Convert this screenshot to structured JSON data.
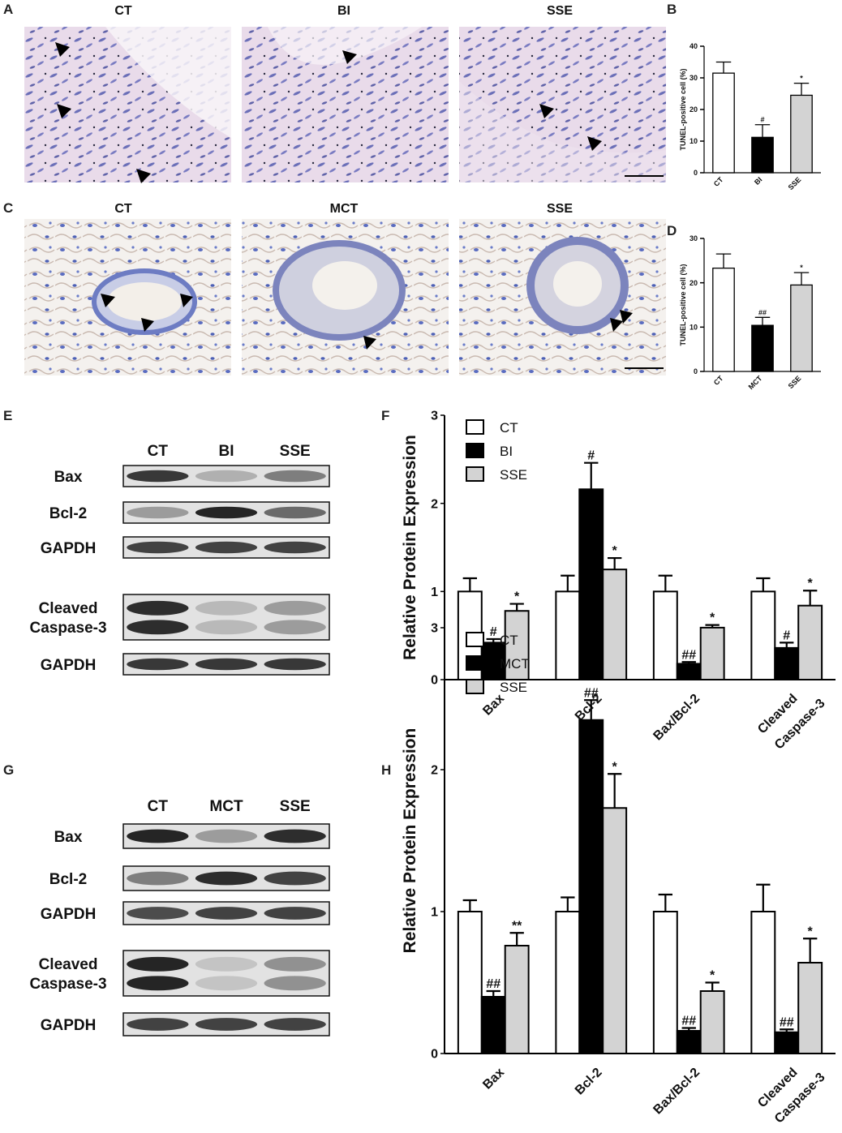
{
  "panel_letters": [
    "A",
    "B",
    "C",
    "D",
    "E",
    "F",
    "G",
    "H"
  ],
  "colors": {
    "CT": "#ffffff",
    "treat": "#000000",
    "SSE": "#d3d3d3"
  },
  "micrographs": [
    {
      "row": "A",
      "labels": [
        "CT",
        "BI",
        "SSE"
      ],
      "style": "pink"
    },
    {
      "row": "C",
      "labels": [
        "CT",
        "MCT",
        "SSE"
      ],
      "style": "blue"
    }
  ],
  "blots": [
    {
      "panel": "E",
      "lanes": [
        "CT",
        "BI",
        "SSE"
      ],
      "rows": [
        {
          "label": "Bax"
        },
        {
          "label": "Bcl-2"
        },
        {
          "label": "GAPDH"
        },
        {
          "label": "Cleaved\nCaspase-3"
        },
        {
          "label": "GAPDH"
        }
      ]
    },
    {
      "panel": "G",
      "lanes": [
        "CT",
        "MCT",
        "SSE"
      ],
      "rows": [
        {
          "label": "Bax"
        },
        {
          "label": "Bcl-2"
        },
        {
          "label": "GAPDH"
        },
        {
          "label": "Cleaved\nCaspase-3"
        },
        {
          "label": "GAPDH"
        }
      ]
    }
  ],
  "chart_data": [
    {
      "panel": "B",
      "type": "bar",
      "categories": [
        "CT",
        "BI",
        "SSE"
      ],
      "values": [
        31.5,
        11.2,
        24.5
      ],
      "errors": [
        3.5,
        4,
        3.8
      ],
      "annotations": [
        "",
        "#",
        "*"
      ],
      "ylabel": "TUNEL-positive cell (%)",
      "ylim": [
        0,
        40
      ],
      "yticks": [
        0,
        10,
        20,
        30,
        40
      ]
    },
    {
      "panel": "D",
      "type": "bar",
      "categories": [
        "CT",
        "MCT",
        "SSE"
      ],
      "values": [
        23.3,
        10.4,
        19.5
      ],
      "errors": [
        3.2,
        1.8,
        2.8
      ],
      "annotations": [
        "",
        "##",
        "*"
      ],
      "ylabel": "TUNEL-positive cell (%)",
      "ylim": [
        0,
        30
      ],
      "yticks": [
        0,
        10,
        20,
        30
      ]
    },
    {
      "panel": "F",
      "type": "bar",
      "categories": [
        "Bax",
        "Bcl-2",
        "Bax/Bcl-2",
        "Cleaved\nCaspase-3"
      ],
      "ylabel": "Relative Protein Expression",
      "ylim": [
        0,
        3
      ],
      "yticks": [
        0,
        1,
        2,
        3
      ],
      "legend": "top-left",
      "series": [
        {
          "name": "CT",
          "values": [
            1,
            1,
            1,
            1
          ],
          "errors": [
            0.15,
            0.18,
            0.18,
            0.15
          ],
          "annotations": [
            "",
            "",
            "",
            ""
          ]
        },
        {
          "name": "BI",
          "values": [
            0.42,
            2.16,
            0.18,
            0.36
          ],
          "errors": [
            0.04,
            0.3,
            0.02,
            0.06
          ],
          "annotations": [
            "#",
            "#",
            "##",
            "#"
          ]
        },
        {
          "name": "SSE",
          "values": [
            0.78,
            1.25,
            0.59,
            0.84
          ],
          "errors": [
            0.08,
            0.13,
            0.03,
            0.17
          ],
          "annotations": [
            "*",
            "*",
            "*",
            "*"
          ]
        }
      ]
    },
    {
      "panel": "H",
      "type": "bar",
      "categories": [
        "Bax",
        "Bcl-2",
        "Bax/Bcl-2",
        "Cleaved\nCaspase-3"
      ],
      "ylabel": "Relative Protein Expression",
      "ylim": [
        0,
        3
      ],
      "yticks": [
        0,
        1,
        2,
        3
      ],
      "legend": "top-left",
      "series": [
        {
          "name": "CT",
          "values": [
            1,
            1,
            1,
            1
          ],
          "errors": [
            0.08,
            0.1,
            0.12,
            0.19
          ],
          "annotations": [
            "",
            "",
            "",
            ""
          ]
        },
        {
          "name": "MCT",
          "values": [
            0.4,
            2.35,
            0.16,
            0.15
          ],
          "errors": [
            0.04,
            0.14,
            0.02,
            0.02
          ],
          "annotations": [
            "##",
            "##",
            "##",
            "##"
          ]
        },
        {
          "name": "SSE",
          "values": [
            0.76,
            1.73,
            0.44,
            0.64
          ],
          "errors": [
            0.09,
            0.24,
            0.06,
            0.17
          ],
          "annotations": [
            "**",
            "*",
            "*",
            "*"
          ]
        }
      ]
    }
  ]
}
